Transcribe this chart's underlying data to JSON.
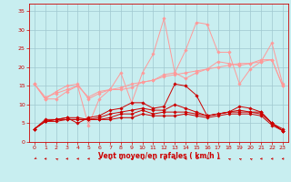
{
  "background_color": "#c8eef0",
  "grid_color": "#a0c8d0",
  "xlabel": "Vent moyen/en rafales ( km/h )",
  "xlabel_color": "#cc0000",
  "tick_color": "#cc0000",
  "ylim": [
    0,
    37
  ],
  "yticks": [
    0,
    5,
    10,
    15,
    20,
    25,
    30,
    35
  ],
  "xlim": [
    -0.5,
    23.5
  ],
  "xticks": [
    0,
    1,
    2,
    3,
    4,
    5,
    6,
    7,
    8,
    9,
    10,
    11,
    12,
    13,
    14,
    15,
    16,
    17,
    18,
    19,
    20,
    21,
    22,
    23
  ],
  "series_light": [
    [
      15.5,
      11.5,
      11.5,
      13.5,
      15.0,
      4.5,
      11.5,
      14.0,
      18.5,
      10.5,
      18.5,
      23.5,
      33.0,
      18.5,
      24.5,
      32.0,
      31.5,
      24.0,
      24.0,
      15.5,
      19.5,
      21.5,
      26.5,
      15.5
    ],
    [
      15.5,
      11.5,
      13.5,
      15.0,
      15.5,
      11.5,
      13.0,
      14.0,
      14.0,
      14.5,
      16.0,
      16.5,
      18.0,
      18.5,
      17.0,
      18.5,
      19.5,
      21.5,
      21.0,
      20.5,
      21.0,
      22.0,
      22.0,
      15.0
    ],
    [
      15.5,
      12.0,
      13.0,
      14.0,
      15.0,
      12.0,
      13.5,
      14.0,
      14.5,
      15.5,
      16.0,
      16.5,
      17.5,
      18.0,
      18.5,
      19.0,
      19.5,
      20.0,
      20.5,
      21.0,
      21.0,
      21.5,
      22.0,
      15.0
    ]
  ],
  "series_dark": [
    [
      3.5,
      6.0,
      6.0,
      6.5,
      5.0,
      6.5,
      7.0,
      8.5,
      9.0,
      10.5,
      10.5,
      9.0,
      9.5,
      15.5,
      15.0,
      12.5,
      7.0,
      7.5,
      8.0,
      9.5,
      9.0,
      8.0,
      5.0,
      3.0
    ],
    [
      3.5,
      5.5,
      6.0,
      6.5,
      6.5,
      6.0,
      6.5,
      7.5,
      8.0,
      8.5,
      9.0,
      8.5,
      8.5,
      10.0,
      9.0,
      8.0,
      7.0,
      7.5,
      8.0,
      8.5,
      8.0,
      8.0,
      5.0,
      3.5
    ],
    [
      3.5,
      5.5,
      6.0,
      6.0,
      6.0,
      6.0,
      6.0,
      6.5,
      7.5,
      7.5,
      8.5,
      7.5,
      8.0,
      8.0,
      8.0,
      7.5,
      7.0,
      7.5,
      8.0,
      8.0,
      8.0,
      7.5,
      5.0,
      3.0
    ],
    [
      3.5,
      5.5,
      5.5,
      6.0,
      6.0,
      6.0,
      6.0,
      6.0,
      6.5,
      6.5,
      7.5,
      7.0,
      7.0,
      7.0,
      7.5,
      7.0,
      6.5,
      7.0,
      7.5,
      7.5,
      7.5,
      7.0,
      4.5,
      3.0
    ]
  ],
  "light_color": "#ff9999",
  "dark_color": "#cc0000",
  "marker_size": 1.8,
  "linewidth": 0.7,
  "arrow_angles": [
    225,
    270,
    315,
    270,
    270,
    270,
    270,
    270,
    270,
    270,
    270,
    315,
    315,
    270,
    270,
    225,
    225,
    225,
    315,
    315,
    315,
    270,
    270,
    270
  ]
}
